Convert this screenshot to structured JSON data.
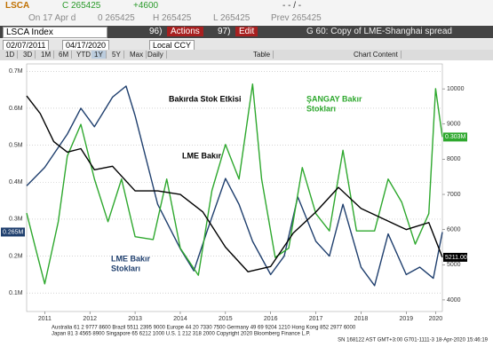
{
  "header": {
    "ticker": "LSCA",
    "close": "C 265425",
    "change": "+4600",
    "dash": "- - / -",
    "on": "On 17 Apr d",
    "open": "0 265425",
    "high": "H 265425",
    "low": "L 265425",
    "prev": "Prev 265425",
    "security": "LSCA Index",
    "actions_no": "96)",
    "actions": "Actions",
    "edit_no": "97)",
    "edit": "Edit",
    "chart_name": "G 60: Copy of LME-Shanghai spread",
    "start_date": "02/07/2011",
    "end_date": "04/17/2020",
    "currency": "Local CCY",
    "buttons": [
      "1D",
      "3D",
      "1M",
      "6M",
      "YTD",
      "1Y",
      "5Y",
      "Max",
      "Daily"
    ],
    "table": "Table",
    "chart_content": "Chart Content"
  },
  "chart_data": {
    "type": "line",
    "annotations": [
      {
        "lines": [
          "Bakırda Stok Etkisi"
        ],
        "color": "#000000"
      },
      {
        "lines": [
          "LME Bakır"
        ],
        "color": "#000000"
      },
      {
        "lines": [
          "ŞANGAY Bakır",
          "Stokları"
        ],
        "color": "#2ea82e"
      },
      {
        "lines": [
          "LME Bakır",
          "Stokları"
        ],
        "color": "#1f3f6e"
      }
    ],
    "xlim": [
      2011.1,
      2020.3
    ],
    "xticks": [
      {
        "value": 2011.5,
        "label": "2011"
      },
      {
        "value": 2012.5,
        "label": "2012"
      },
      {
        "value": 2013.5,
        "label": "2013"
      },
      {
        "value": 2014.5,
        "label": "2014"
      },
      {
        "value": 2015.5,
        "label": "2015"
      },
      {
        "value": 2016.5,
        "label": "2016"
      },
      {
        "value": 2017.5,
        "label": "2017"
      },
      {
        "value": 2018.5,
        "label": "2018"
      },
      {
        "value": 2019.5,
        "label": "2019"
      },
      {
        "value": 2020.15,
        "label": "2020"
      }
    ],
    "ylim": [
      50000,
      720000
    ],
    "yticks": [
      {
        "value": 100000,
        "label": "0.1M"
      },
      {
        "value": 200000,
        "label": "0.2M"
      },
      {
        "value": 300000,
        "label": "0.3M"
      },
      {
        "value": 400000,
        "label": "0.4M"
      },
      {
        "value": 500000,
        "label": "0.5M"
      },
      {
        "value": 600000,
        "label": "0.6M"
      },
      {
        "value": 700000,
        "label": "0.7M"
      }
    ],
    "y2lim": [
      3670,
      10710
    ],
    "y2ticks": [
      4000,
      5000,
      6000,
      7000,
      8000,
      9000,
      10000
    ],
    "y3lim": [
      0,
      430000
    ],
    "grid": true,
    "series": [
      {
        "name": "LME Bakır Stokları",
        "color": "#1f3f6e",
        "axis": "y",
        "x": [
          2011.1,
          2011.5,
          2012.0,
          2012.3,
          2012.6,
          2013.0,
          2013.3,
          2013.5,
          2014.0,
          2014.5,
          2014.8,
          2015.1,
          2015.5,
          2015.8,
          2016.1,
          2016.5,
          2016.8,
          2017.1,
          2017.5,
          2017.8,
          2018.1,
          2018.5,
          2018.8,
          2019.1,
          2019.5,
          2019.8,
          2020.1,
          2020.3
        ],
        "values": [
          390000,
          440000,
          530000,
          600000,
          550000,
          630000,
          660000,
          580000,
          340000,
          220000,
          160000,
          270000,
          410000,
          340000,
          240000,
          150000,
          200000,
          360000,
          240000,
          200000,
          340000,
          170000,
          120000,
          260000,
          150000,
          170000,
          140000,
          265000
        ],
        "value_labels": [
          null,
          null,
          null,
          null,
          null,
          null,
          null,
          null,
          null,
          null,
          null,
          null,
          null,
          null,
          null,
          null,
          null,
          null,
          null,
          null,
          null,
          null,
          null,
          null,
          null,
          null,
          null,
          "0.265M"
        ]
      },
      {
        "name": "ŞANGAY Bakır Stokları",
        "color": "#2ea82e",
        "axis": "y3",
        "x": [
          2011.1,
          2011.3,
          2011.5,
          2011.8,
          2012.0,
          2012.3,
          2012.6,
          2012.9,
          2013.2,
          2013.5,
          2013.9,
          2014.2,
          2014.5,
          2014.9,
          2015.2,
          2015.5,
          2015.8,
          2016.1,
          2016.3,
          2016.6,
          2016.9,
          2017.2,
          2017.5,
          2017.8,
          2018.1,
          2018.4,
          2018.8,
          2019.1,
          2019.4,
          2019.7,
          2020.0,
          2020.15,
          2020.3
        ],
        "values": [
          171000,
          109000,
          48000,
          156000,
          270000,
          325000,
          230000,
          156000,
          230000,
          130000,
          125000,
          230000,
          110000,
          63000,
          210000,
          290000,
          230000,
          395000,
          230000,
          94000,
          110000,
          250000,
          170000,
          140000,
          280000,
          140000,
          140000,
          230000,
          190000,
          117000,
          170000,
          387000,
          303000
        ],
        "value_labels": [
          null,
          null,
          null,
          null,
          null,
          null,
          null,
          null,
          null,
          null,
          null,
          null,
          null,
          null,
          null,
          null,
          null,
          null,
          null,
          null,
          null,
          null,
          null,
          null,
          null,
          null,
          null,
          null,
          null,
          null,
          null,
          null,
          "0.303M"
        ]
      },
      {
        "name": "LME Bakır",
        "color": "#000000",
        "axis": "y2",
        "x": [
          2011.1,
          2011.4,
          2011.7,
          2012.0,
          2012.3,
          2012.6,
          2013.0,
          2013.5,
          2014.0,
          2014.5,
          2015.0,
          2015.5,
          2016.0,
          2016.5,
          2017.0,
          2017.5,
          2018.0,
          2018.5,
          2019.0,
          2019.5,
          2020.0,
          2020.3
        ],
        "values": [
          9800,
          9300,
          8500,
          8200,
          8300,
          7700,
          7800,
          7100,
          7100,
          7000,
          6500,
          5500,
          4800,
          4950,
          5900,
          6500,
          7200,
          6600,
          6300,
          6000,
          6200,
          5211
        ],
        "value_labels": [
          null,
          null,
          null,
          null,
          null,
          null,
          null,
          null,
          null,
          null,
          null,
          null,
          null,
          null,
          null,
          null,
          null,
          null,
          null,
          null,
          null,
          "5211.00"
        ]
      }
    ],
    "footer": [
      "Australia 61 2 9777 8600 Brazil 5511 2395 9000 Europe 44 20 7330 7500 Germany 49 69 9204 1210 Hong Kong 852 2977 6000",
      "Japan 81 3 4565 8900 Singapore 65 6212 1000 U.S. 1 212 318 2000 Copyright 2020 Bloomberg Finance L.P.",
      "SN 168122 AST GMT+3:00 G701-1111-3 18-Apr-2020 15:46:19"
    ]
  }
}
